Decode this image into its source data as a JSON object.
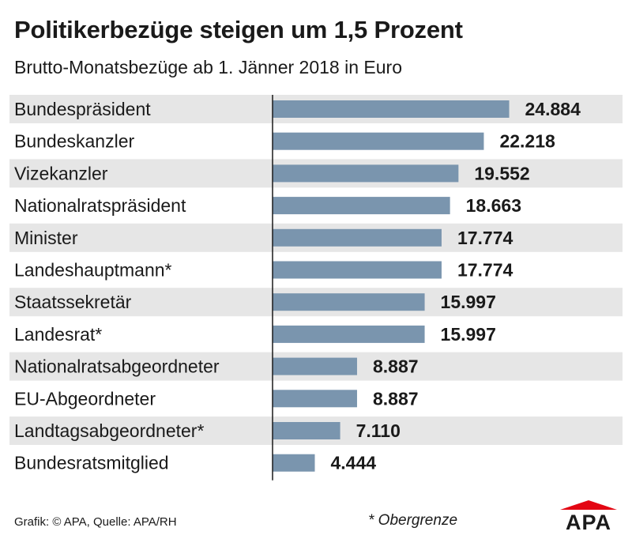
{
  "chart_data": {
    "type": "bar",
    "orientation": "horizontal",
    "title": "Politikerbezüge steigen um 1,5 Prozent",
    "subtitle": "Brutto-Monatsbezüge ab 1. Jänner 2018 in Euro",
    "xlabel": "",
    "ylabel": "",
    "xlim": [
      0,
      27000
    ],
    "grid": false,
    "categories": [
      "Bundespräsident",
      "Bundeskanzler",
      "Vizekanzler",
      "Nationalratspräsident",
      "Minister",
      "Landeshauptmann*",
      "Staatssekretär",
      "Landesrat*",
      "Nationalratsabgeordneter",
      "EU-Abgeordneter",
      "Landtagsabgeordneter*",
      "Bundesratsmitglied"
    ],
    "values": [
      24884,
      22218,
      19552,
      18663,
      17774,
      17774,
      15997,
      15997,
      8887,
      8887,
      7110,
      4444
    ],
    "value_labels": [
      "24.884",
      "22.218",
      "19.552",
      "18.663",
      "17.774",
      "17.774",
      "15.997",
      "15.997",
      "8.887",
      "8.887",
      "7.110",
      "4.444"
    ]
  },
  "footer": {
    "source": "Grafik: © APA, Quelle: APA/RH",
    "note": "* Obergrenze"
  },
  "logo": {
    "text": "APA"
  },
  "colors": {
    "bar": "#7a95ae",
    "row_band": "#e6e6e6",
    "axis": "#1a1a1a",
    "text": "#1a1a1a",
    "logo_red": "#e30613"
  }
}
